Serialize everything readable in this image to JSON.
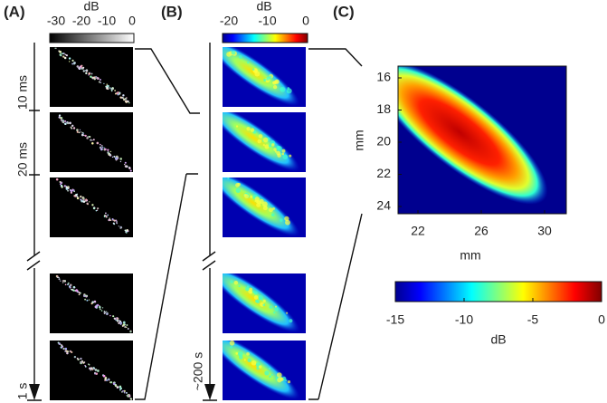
{
  "figure": {
    "panel_a": {
      "label": "(A)",
      "colorbar": {
        "title": "dB",
        "ticks": [
          "-30",
          "-20",
          "-10",
          "0"
        ]
      },
      "time_labels": [
        "10 ms",
        "20 ms",
        "1 s"
      ]
    },
    "panel_b": {
      "label": "(B)",
      "colorbar": {
        "title": "dB",
        "ticks": [
          "-20",
          "-10",
          "0"
        ]
      },
      "time_labels": [
        "~200 s"
      ]
    },
    "panel_c": {
      "label": "(C)",
      "y_label": "mm",
      "y_ticks": [
        "16",
        "18",
        "20",
        "22",
        "24"
      ],
      "x_label": "mm",
      "x_ticks": [
        "22",
        "26",
        "30"
      ],
      "colorbar": {
        "title": "dB",
        "ticks": [
          "-15",
          "-10",
          "-5",
          "0"
        ]
      }
    }
  }
}
